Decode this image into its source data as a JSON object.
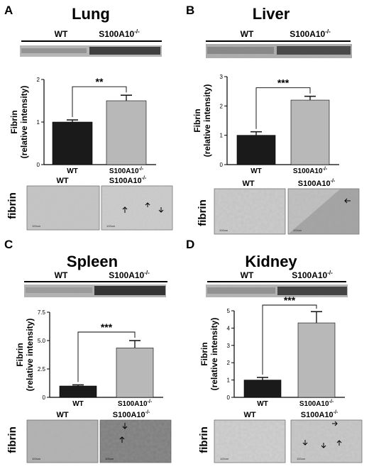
{
  "figure": {
    "panels": [
      {
        "letter": "A",
        "title": "Lung",
        "blot": {
          "wt_label": "WT",
          "ko_label": "S100A10",
          "ko_sup": "-/-"
        },
        "micro": {
          "row_label": "fibrin",
          "wt_label": "WT",
          "ko_label": "S100A10",
          "ko_sup": "-/-",
          "scale_label": "100um"
        }
      },
      {
        "letter": "B",
        "title": "Liver",
        "blot": {
          "wt_label": "WT",
          "ko_label": "S100A10",
          "ko_sup": "-/-"
        },
        "micro": {
          "row_label": "fibrin",
          "wt_label": "WT",
          "ko_label": "S100A10",
          "ko_sup": "-/-",
          "scale_label": "100um"
        }
      },
      {
        "letter": "C",
        "title": "Spleen",
        "blot": {
          "wt_label": "WT",
          "ko_label": "S100A10",
          "ko_sup": "-/-"
        },
        "micro": {
          "row_label": "fibrin",
          "wt_label": "WT",
          "ko_label": "S100A10",
          "ko_sup": "-/-",
          "scale_label": "100um"
        }
      },
      {
        "letter": "D",
        "title": "Kidney",
        "blot": {
          "wt_label": "WT",
          "ko_label": "S100A10",
          "ko_sup": "-/-"
        },
        "micro": {
          "row_label": "fibrin",
          "wt_label": "WT",
          "ko_label": "S100A10",
          "ko_sup": "-/-",
          "scale_label": "100um"
        }
      }
    ]
  },
  "chart_data": [
    {
      "type": "bar",
      "panel": "A",
      "categories": [
        "WT",
        "S100A10-/-"
      ],
      "category_sup": [
        "",
        "-/-"
      ],
      "category_base": [
        "WT",
        "S100A10"
      ],
      "values": [
        1.0,
        1.5
      ],
      "errors": [
        0.05,
        0.13
      ],
      "ylabel": "Fibrin\n(relative intensity)",
      "ylabel_lines": [
        "Fibrin",
        "(relative intensity)"
      ],
      "ylim": [
        0,
        2
      ],
      "yticks": [
        0,
        1,
        2
      ],
      "ytick_labels": [
        "0",
        "1",
        "2"
      ],
      "significance": "**",
      "bar_colors": [
        "#1a1a1a",
        "#b8b8b8"
      ]
    },
    {
      "type": "bar",
      "panel": "B",
      "categories": [
        "WT",
        "S100A10-/-"
      ],
      "category_sup": [
        "",
        "-/-"
      ],
      "category_base": [
        "WT",
        "S100A10"
      ],
      "values": [
        1.0,
        2.2
      ],
      "errors": [
        0.12,
        0.13
      ],
      "ylabel": "Fibrin\n(relative intensity)",
      "ylabel_lines": [
        "Fibrin",
        "(relative intensity)"
      ],
      "ylim": [
        0,
        3
      ],
      "yticks": [
        0,
        1,
        2,
        3
      ],
      "ytick_labels": [
        "0",
        "1",
        "2",
        "3"
      ],
      "significance": "***",
      "bar_colors": [
        "#1a1a1a",
        "#b8b8b8"
      ]
    },
    {
      "type": "bar",
      "panel": "C",
      "categories": [
        "WT",
        "S100A10-/-"
      ],
      "category_sup": [
        "",
        "-/-"
      ],
      "category_base": [
        "WT",
        "S100A10"
      ],
      "values": [
        1.0,
        4.35
      ],
      "errors": [
        0.1,
        0.65
      ],
      "ylabel": "Fibrin\n(relative intensity)",
      "ylabel_lines": [
        "Fibrin",
        "(relative intensity)"
      ],
      "ylim": [
        0,
        7.5
      ],
      "yticks": [
        0,
        2.5,
        5.0,
        7.5
      ],
      "ytick_labels": [
        "0",
        "2.5",
        "5.0",
        "7.5"
      ],
      "significance": "***",
      "bar_colors": [
        "#1a1a1a",
        "#b8b8b8"
      ]
    },
    {
      "type": "bar",
      "panel": "D",
      "categories": [
        "WT",
        "S100A10-/-"
      ],
      "category_sup": [
        "",
        "-/-"
      ],
      "category_base": [
        "WT",
        "S100A10"
      ],
      "values": [
        1.0,
        4.3
      ],
      "errors": [
        0.15,
        0.65
      ],
      "ylabel": "Fibrin\n(relative intensity)",
      "ylabel_lines": [
        "Fibrin",
        "(relative intensity)"
      ],
      "ylim": [
        0,
        5
      ],
      "yticks": [
        0,
        1,
        2,
        3,
        4,
        5
      ],
      "ytick_labels": [
        "0",
        "1",
        "2",
        "3",
        "4",
        "5"
      ],
      "significance": "***",
      "bar_colors": [
        "#1a1a1a",
        "#b8b8b8"
      ]
    }
  ]
}
